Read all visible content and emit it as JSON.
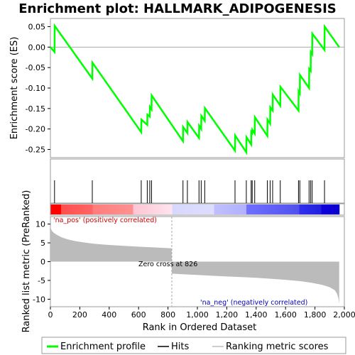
{
  "chart_data": {
    "title": "Enrichment plot: HALLMARK_ADIPOGENESIS",
    "panels": {
      "enrichment": {
        "type": "line",
        "ylabel": "Enrichment score (ES)",
        "ylim": [
          -0.27,
          0.07
        ],
        "yticks": [
          0.05,
          0.0,
          -0.05,
          -0.1,
          -0.15,
          -0.2,
          -0.25
        ],
        "ytick_labels": [
          "0.05",
          "0.00",
          "-0.05",
          "-0.10",
          "-0.15",
          "-0.20",
          "-0.25"
        ],
        "series_color": "#00ff00",
        "points": [
          [
            0,
            0
          ],
          [
            28,
            -0.012
          ],
          [
            29,
            0.052
          ],
          [
            285,
            -0.077
          ],
          [
            286,
            -0.038
          ],
          [
            618,
            -0.208
          ],
          [
            619,
            -0.177
          ],
          [
            659,
            -0.19
          ],
          [
            660,
            -0.165
          ],
          [
            676,
            -0.17
          ],
          [
            677,
            -0.146
          ],
          [
            688,
            -0.152
          ],
          [
            689,
            -0.118
          ],
          [
            902,
            -0.23
          ],
          [
            903,
            -0.195
          ],
          [
            932,
            -0.21
          ],
          [
            933,
            -0.183
          ],
          [
            1011,
            -0.222
          ],
          [
            1012,
            -0.192
          ],
          [
            1026,
            -0.2
          ],
          [
            1027,
            -0.168
          ],
          [
            1050,
            -0.18
          ],
          [
            1051,
            -0.149
          ],
          [
            1256,
            -0.253
          ],
          [
            1257,
            -0.216
          ],
          [
            1333,
            -0.257
          ],
          [
            1334,
            -0.22
          ],
          [
            1366,
            -0.238
          ],
          [
            1367,
            -0.207
          ],
          [
            1373,
            -0.21
          ],
          [
            1374,
            -0.202
          ],
          [
            1390,
            -0.211
          ],
          [
            1391,
            -0.171
          ],
          [
            1476,
            -0.217
          ],
          [
            1477,
            -0.177
          ],
          [
            1495,
            -0.187
          ],
          [
            1496,
            -0.147
          ],
          [
            1512,
            -0.155
          ],
          [
            1513,
            -0.116
          ],
          [
            1564,
            -0.143
          ],
          [
            1565,
            -0.097
          ],
          [
            1688,
            -0.155
          ],
          [
            1689,
            -0.108
          ],
          [
            1697,
            -0.113
          ],
          [
            1698,
            -0.068
          ],
          [
            1760,
            -0.1
          ],
          [
            1761,
            -0.053
          ],
          [
            1771,
            -0.058
          ],
          [
            1772,
            -0.012
          ],
          [
            1781,
            -0.017
          ],
          [
            1782,
            0.033
          ],
          [
            1865,
            -0.007
          ],
          [
            1866,
            0.05
          ],
          [
            1965,
            0
          ]
        ]
      },
      "hits": {
        "type": "barcode",
        "positions": [
          28,
          285,
          618,
          659,
          676,
          688,
          902,
          932,
          1011,
          1026,
          1050,
          1256,
          1333,
          1366,
          1373,
          1390,
          1476,
          1495,
          1512,
          1564,
          1688,
          1697,
          1760,
          1771,
          1781,
          1865
        ]
      },
      "ranked_metric": {
        "type": "area",
        "ylabel": "Ranked list metric (PreRanked)",
        "xlabel": "Rank in Ordered Dataset",
        "xlim": [
          0,
          2000
        ],
        "ylim": [
          -12,
          12
        ],
        "xticks": [
          0,
          200,
          400,
          600,
          800,
          1000,
          1200,
          1400,
          1600,
          1800,
          2000
        ],
        "xtick_labels": [
          "0",
          "200",
          "400",
          "600",
          "800",
          "1,000",
          "1,200",
          "1,400",
          "1,600",
          "1,800",
          "2,000"
        ],
        "yticks": [
          10,
          5,
          0,
          -5,
          -10
        ],
        "ytick_labels": [
          "10",
          "5",
          "0",
          "-5",
          "-10"
        ],
        "fill_color": "#bbbbbb",
        "zero_cross": 826,
        "zero_cross_label": "Zero cross at 826",
        "pos_label": "'na_pos' (positively correlated)",
        "neg_label": "'na_neg' (negatively correlated)",
        "profile": [
          [
            0,
            9.7
          ],
          [
            3,
            8.9
          ],
          [
            10,
            8.2
          ],
          [
            25,
            7.6
          ],
          [
            50,
            7.0
          ],
          [
            80,
            6.4
          ],
          [
            120,
            5.9
          ],
          [
            170,
            5.45
          ],
          [
            230,
            5.1
          ],
          [
            300,
            4.75
          ],
          [
            380,
            4.5
          ],
          [
            460,
            4.3
          ],
          [
            540,
            4.1
          ],
          [
            620,
            3.95
          ],
          [
            700,
            3.8
          ],
          [
            780,
            3.65
          ],
          [
            825,
            3.55
          ],
          [
            826,
            -3.2
          ],
          [
            900,
            -3.35
          ],
          [
            1000,
            -3.55
          ],
          [
            1100,
            -3.75
          ],
          [
            1200,
            -3.95
          ],
          [
            1300,
            -4.1
          ],
          [
            1400,
            -4.3
          ],
          [
            1500,
            -4.55
          ],
          [
            1600,
            -4.85
          ],
          [
            1700,
            -5.2
          ],
          [
            1780,
            -5.65
          ],
          [
            1850,
            -6.2
          ],
          [
            1900,
            -6.8
          ],
          [
            1935,
            -7.6
          ],
          [
            1950,
            -8.5
          ],
          [
            1960,
            -9.8
          ],
          [
            1965,
            -11.2
          ]
        ]
      },
      "colorbar": {
        "stops": [
          {
            "rank": 0,
            "color": "#ff0000"
          },
          {
            "rank": 70,
            "color": "#ff0000"
          },
          {
            "rank": 71,
            "color": "#ff4d4d"
          },
          {
            "rank": 285,
            "color": "#ff6666"
          },
          {
            "rank": 286,
            "color": "#ff7c7c"
          },
          {
            "rank": 560,
            "color": "#ff9191"
          },
          {
            "rank": 561,
            "color": "#ffc4d4"
          },
          {
            "rank": 826,
            "color": "#ffe4ee"
          },
          {
            "rank": 827,
            "color": "#d8d8ff"
          },
          {
            "rank": 1110,
            "color": "#ddddff"
          },
          {
            "rank": 1111,
            "color": "#c0c0ff"
          },
          {
            "rank": 1330,
            "color": "#b0b0ff"
          },
          {
            "rank": 1331,
            "color": "#7070ff"
          },
          {
            "rank": 1690,
            "color": "#5050ee"
          },
          {
            "rank": 1691,
            "color": "#3030ee"
          },
          {
            "rank": 1840,
            "color": "#2020dd"
          },
          {
            "rank": 1841,
            "color": "#1000dd"
          },
          {
            "rank": 1965,
            "color": "#0a00cc"
          }
        ]
      }
    },
    "legend": {
      "entries": [
        {
          "label": "Enrichment profile",
          "color": "#00ff00",
          "style": "thick"
        },
        {
          "label": "Hits",
          "color": "#000000",
          "style": "thin"
        },
        {
          "label": "Ranking metric scores",
          "color": "#bbbbbb",
          "style": "thin"
        }
      ]
    }
  }
}
